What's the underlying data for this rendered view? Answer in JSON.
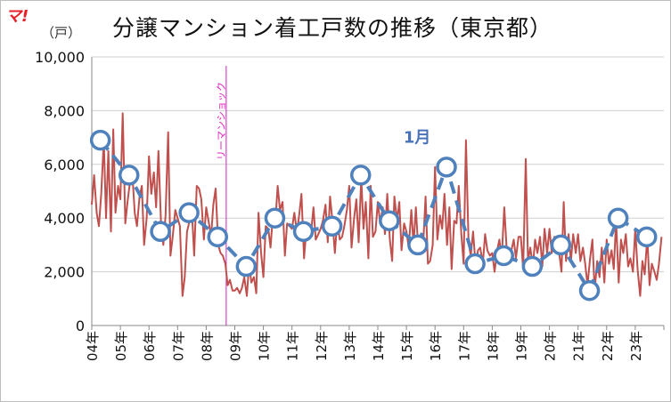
{
  "header": {
    "logo": "マ!",
    "unit": "（戸）",
    "title": "分譲マンション着工戸数の推移（東京都）"
  },
  "colors": {
    "monthly_line": "#c0504d",
    "january_series": "#4f81bd",
    "lehman_line": "#d020c0",
    "grid": "#d0d0d0"
  },
  "chart_data": {
    "type": "line",
    "title": "分譲マンション着工戸数の推移（東京都）",
    "ylabel": "（戸）",
    "ylim": [
      0,
      10000
    ],
    "yticks": [
      0,
      2000,
      4000,
      6000,
      8000,
      10000
    ],
    "ytick_labels": [
      "0",
      "2,000",
      "4,000",
      "6,000",
      "8,000",
      "10,000"
    ],
    "xticks": [
      "04年",
      "05年",
      "06年",
      "07年",
      "08年",
      "09年",
      "10年",
      "11年",
      "12年",
      "13年",
      "14年",
      "15年",
      "16年",
      "17年",
      "18年",
      "19年",
      "20年",
      "21年",
      "22年",
      "23年"
    ],
    "xlim": [
      2004,
      2024
    ],
    "grid": true,
    "annotations": [
      {
        "text": "リーマンショック",
        "x": 2008.7,
        "type": "vertical-line"
      },
      {
        "text": "1月",
        "near_series": "january"
      }
    ],
    "series": [
      {
        "name": "monthly",
        "style": "solid",
        "x": [
          2004.0,
          2004.08,
          2004.17,
          2004.25,
          2004.33,
          2004.42,
          2004.5,
          2004.58,
          2004.67,
          2004.75,
          2004.83,
          2004.92,
          2005.0,
          2005.08,
          2005.17,
          2005.25,
          2005.33,
          2005.42,
          2005.5,
          2005.58,
          2005.67,
          2005.75,
          2005.83,
          2005.92,
          2006.0,
          2006.08,
          2006.17,
          2006.25,
          2006.33,
          2006.42,
          2006.5,
          2006.58,
          2006.67,
          2006.75,
          2006.83,
          2006.92,
          2007.0,
          2007.08,
          2007.17,
          2007.25,
          2007.33,
          2007.42,
          2007.5,
          2007.58,
          2007.67,
          2007.75,
          2007.83,
          2007.92,
          2008.0,
          2008.08,
          2008.17,
          2008.25,
          2008.33,
          2008.42,
          2008.5,
          2008.58,
          2008.67,
          2008.75,
          2008.83,
          2008.92,
          2009.0,
          2009.08,
          2009.17,
          2009.25,
          2009.33,
          2009.42,
          2009.5,
          2009.58,
          2009.67,
          2009.75,
          2009.83,
          2009.92,
          2010.0,
          2010.08,
          2010.17,
          2010.25,
          2010.33,
          2010.42,
          2010.5,
          2010.58,
          2010.67,
          2010.75,
          2010.83,
          2010.92,
          2011.0,
          2011.08,
          2011.17,
          2011.25,
          2011.33,
          2011.42,
          2011.5,
          2011.58,
          2011.67,
          2011.75,
          2011.83,
          2011.92,
          2012.0,
          2012.08,
          2012.17,
          2012.25,
          2012.33,
          2012.42,
          2012.5,
          2012.58,
          2012.67,
          2012.75,
          2012.83,
          2012.92,
          2013.0,
          2013.08,
          2013.17,
          2013.25,
          2013.33,
          2013.42,
          2013.5,
          2013.58,
          2013.67,
          2013.75,
          2013.83,
          2013.92,
          2014.0,
          2014.08,
          2014.17,
          2014.25,
          2014.33,
          2014.42,
          2014.5,
          2014.58,
          2014.67,
          2014.75,
          2014.83,
          2014.92,
          2015.0,
          2015.08,
          2015.17,
          2015.25,
          2015.33,
          2015.42,
          2015.5,
          2015.58,
          2015.67,
          2015.75,
          2015.83,
          2015.92,
          2016.0,
          2016.08,
          2016.17,
          2016.25,
          2016.33,
          2016.42,
          2016.5,
          2016.58,
          2016.67,
          2016.75,
          2016.83,
          2016.92,
          2017.0,
          2017.08,
          2017.17,
          2017.25,
          2017.33,
          2017.42,
          2017.5,
          2017.58,
          2017.67,
          2017.75,
          2017.83,
          2017.92,
          2018.0,
          2018.08,
          2018.17,
          2018.25,
          2018.33,
          2018.42,
          2018.5,
          2018.58,
          2018.67,
          2018.75,
          2018.83,
          2018.92,
          2019.0,
          2019.08,
          2019.17,
          2019.25,
          2019.33,
          2019.42,
          2019.5,
          2019.58,
          2019.67,
          2019.75,
          2019.83,
          2019.92,
          2020.0,
          2020.08,
          2020.17,
          2020.25,
          2020.33,
          2020.42,
          2020.5,
          2020.58,
          2020.67,
          2020.75,
          2020.83,
          2020.92,
          2021.0,
          2021.08,
          2021.17,
          2021.25,
          2021.33,
          2021.42,
          2021.5,
          2021.58,
          2021.67,
          2021.75,
          2021.83,
          2021.92,
          2022.0,
          2022.08,
          2022.17,
          2022.25,
          2022.33,
          2022.42,
          2022.5,
          2022.58,
          2022.67,
          2022.75,
          2022.83,
          2022.92,
          2023.0,
          2023.08,
          2023.17,
          2023.25,
          2023.33,
          2023.42,
          2023.5,
          2023.58,
          2023.67,
          2023.75,
          2023.83,
          2023.92
        ],
        "values": [
          4500,
          5600,
          4200,
          3700,
          4900,
          6900,
          4000,
          6500,
          3500,
          7300,
          4200,
          5200,
          4700,
          7900,
          3800,
          4600,
          5300,
          5600,
          4200,
          3700,
          4800,
          5200,
          3000,
          4000,
          6300,
          4900,
          5700,
          4400,
          6500,
          3800,
          3000,
          4100,
          7200,
          2600,
          3300,
          4300,
          4000,
          3700,
          1100,
          1800,
          3500,
          3900,
          4300,
          2600,
          5200,
          5100,
          4700,
          3200,
          4400,
          3900,
          3300,
          4500,
          5100,
          3000,
          2700,
          2600,
          2300,
          1500,
          1700,
          1300,
          1300,
          1400,
          1200,
          1400,
          1800,
          1100,
          2300,
          1600,
          1800,
          1200,
          4200,
          2700,
          1800,
          3700,
          3600,
          2900,
          4100,
          3900,
          5200,
          4300,
          4600,
          2600,
          3800,
          3700,
          3600,
          4200,
          3500,
          4100,
          4900,
          2500,
          3600,
          3800,
          3500,
          4400,
          3200,
          3400,
          3600,
          3900,
          4500,
          3100,
          4800,
          3800,
          2700,
          3900,
          3200,
          3300,
          3700,
          4300,
          5200,
          2900,
          4000,
          4700,
          3100,
          5500,
          3600,
          4600,
          2500,
          5200,
          3300,
          3500,
          4600,
          3800,
          4400,
          3400,
          4900,
          3200,
          2400,
          4800,
          3900,
          4600,
          2800,
          3800,
          3500,
          2900,
          4300,
          3000,
          4400,
          2700,
          3200,
          2900,
          4800,
          2300,
          2400,
          3000,
          5900,
          3200,
          4100,
          3600,
          4900,
          3000,
          4400,
          2100,
          3900,
          3800,
          5200,
          3400,
          2300,
          6900,
          3100,
          2600,
          3500,
          2200,
          2800,
          2900,
          2300,
          3400,
          2800,
          2600,
          2700,
          2000,
          2800,
          3200,
          2500,
          4400,
          2900,
          2600,
          2800,
          3200,
          2500,
          3300,
          3300,
          2100,
          6200,
          2400,
          2900,
          2200,
          3200,
          2700,
          3300,
          2200,
          3600,
          2700,
          3600,
          2700,
          3300,
          2900,
          2800,
          2000,
          4600,
          2400,
          3400,
          2400,
          3400,
          2700,
          3400,
          2400,
          2900,
          2300,
          1500,
          2500,
          3200,
          1300,
          2400,
          1800,
          2900,
          1600,
          3200,
          2300,
          2800,
          2100,
          3900,
          1600,
          3200,
          2700,
          3400,
          2200,
          2500,
          2000,
          3600,
          2100,
          1100,
          2400,
          1900,
          3300,
          1500,
          2300,
          2000,
          1700,
          2300,
          3300
        ]
      },
      {
        "name": "january",
        "style": "dashed-markers",
        "x": [
          2004.3,
          2005.3,
          2006.4,
          2007.4,
          2008.4,
          2009.4,
          2010.4,
          2011.4,
          2012.4,
          2013.4,
          2014.4,
          2015.4,
          2016.4,
          2017.4,
          2018.4,
          2019.4,
          2020.4,
          2021.4,
          2022.4,
          2023.4
        ],
        "values": [
          6900,
          5600,
          3500,
          4200,
          3300,
          2200,
          4000,
          3500,
          3700,
          5600,
          3900,
          3000,
          5900,
          2300,
          2600,
          2200,
          3000,
          1300,
          4000,
          3300
        ]
      }
    ]
  }
}
